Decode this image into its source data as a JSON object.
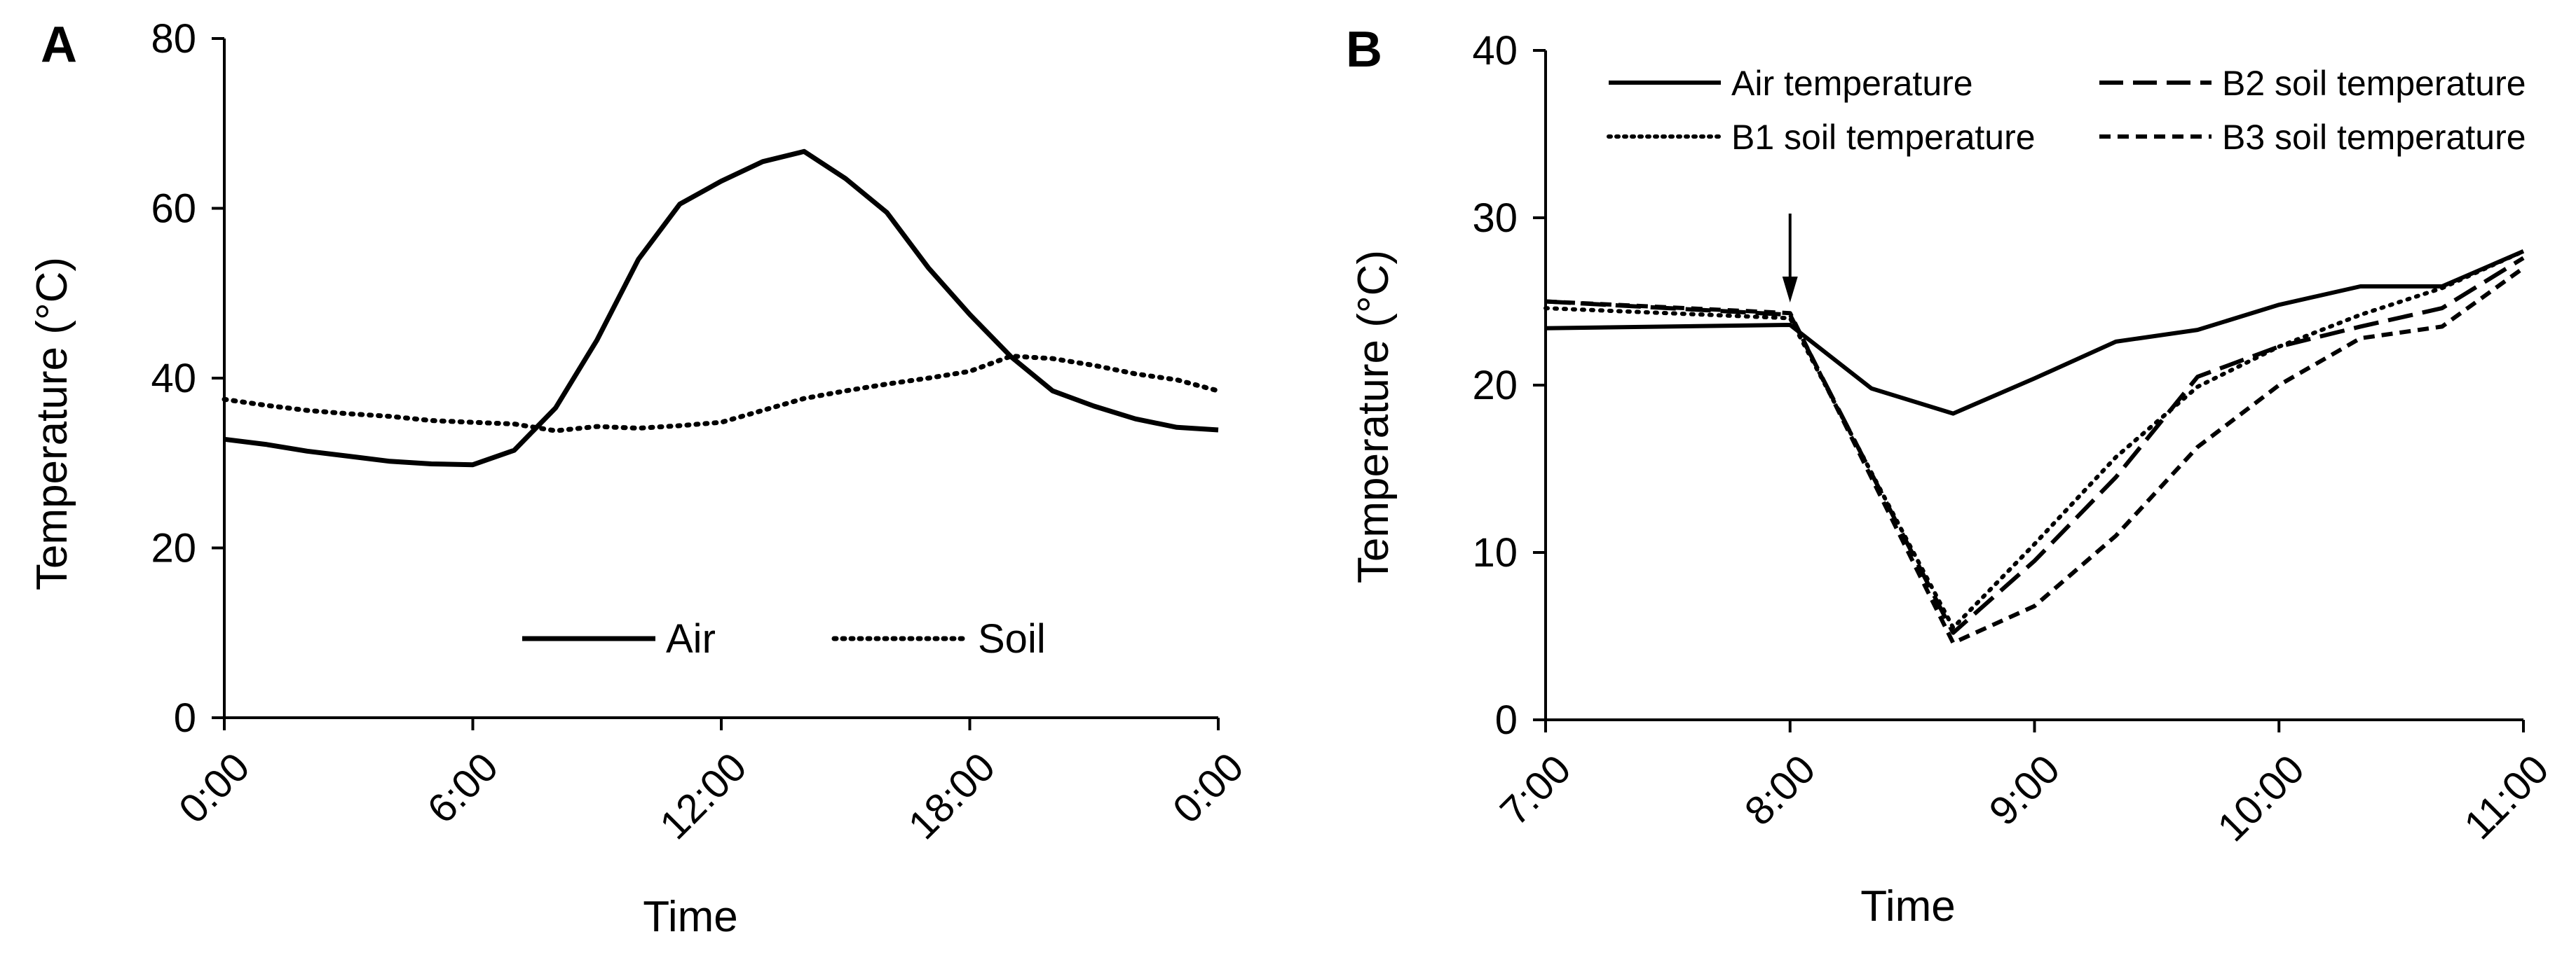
{
  "chart_data": [
    {
      "panel_letter": "A",
      "type": "line",
      "xlabel": "Time",
      "ylabel": "Temperature (°C)",
      "xlim": [
        0,
        24
      ],
      "ylim": [
        0,
        80
      ],
      "x_ticks": [
        0,
        6,
        12,
        18,
        24
      ],
      "x_tick_labels": [
        "0:00",
        "6:00",
        "12:00",
        "18:00",
        "0:00"
      ],
      "y_ticks": [
        0,
        20,
        40,
        60,
        80
      ],
      "y_tick_labels": [
        "0",
        "20",
        "40",
        "60",
        "80"
      ],
      "legend_position": "bottom-center",
      "series": [
        {
          "name": "Air",
          "style": "solid",
          "points": [
            [
              0,
              32.8
            ],
            [
              1,
              32.2
            ],
            [
              2,
              31.4
            ],
            [
              3,
              30.8
            ],
            [
              4,
              30.2
            ],
            [
              5,
              29.9
            ],
            [
              6,
              29.8
            ],
            [
              7,
              31.5
            ],
            [
              8,
              36.5
            ],
            [
              9,
              44.5
            ],
            [
              10,
              54
            ],
            [
              11,
              60.5
            ],
            [
              12,
              63.2
            ],
            [
              13,
              65.5
            ],
            [
              14,
              66.7
            ],
            [
              15,
              63.5
            ],
            [
              16,
              59.5
            ],
            [
              17,
              53
            ],
            [
              18,
              47.5
            ],
            [
              19,
              42.5
            ],
            [
              20,
              38.5
            ],
            [
              21,
              36.7
            ],
            [
              22,
              35.2
            ],
            [
              23,
              34.2
            ],
            [
              24,
              33.9
            ]
          ]
        },
        {
          "name": "Soil",
          "style": "dotted",
          "points": [
            [
              0,
              37.5
            ],
            [
              1,
              36.8
            ],
            [
              2,
              36.2
            ],
            [
              3,
              35.8
            ],
            [
              4,
              35.5
            ],
            [
              5,
              35
            ],
            [
              6,
              34.8
            ],
            [
              7,
              34.6
            ],
            [
              8,
              33.8
            ],
            [
              9,
              34.3
            ],
            [
              10,
              34.1
            ],
            [
              11,
              34.4
            ],
            [
              12,
              34.8
            ],
            [
              13,
              36.2
            ],
            [
              14,
              37.6
            ],
            [
              15,
              38.5
            ],
            [
              16,
              39.3
            ],
            [
              17,
              40
            ],
            [
              18,
              40.8
            ],
            [
              19,
              42.6
            ],
            [
              20,
              42.3
            ],
            [
              21,
              41.5
            ],
            [
              22,
              40.5
            ],
            [
              23,
              39.8
            ],
            [
              24,
              38.5
            ]
          ]
        }
      ]
    },
    {
      "panel_letter": "B",
      "type": "line",
      "xlabel": "Time",
      "ylabel": "Temperature (°C)",
      "xlim": [
        7,
        11
      ],
      "ylim": [
        0,
        40
      ],
      "x_ticks": [
        7,
        8,
        9,
        10,
        11
      ],
      "x_tick_labels": [
        "7:00",
        "8:00",
        "9:00",
        "10:00",
        "11:00"
      ],
      "y_ticks": [
        0,
        10,
        20,
        30,
        40
      ],
      "y_tick_labels": [
        "0",
        "10",
        "20",
        "30",
        "40"
      ],
      "legend_position": "top",
      "annotation": {
        "type": "arrow",
        "x": 8.0,
        "label": ""
      },
      "series": [
        {
          "name": "Air temperature",
          "style": "solid",
          "points": [
            [
              7,
              23.4
            ],
            [
              8,
              23.6
            ],
            [
              8.333,
              19.8
            ],
            [
              8.667,
              18.3
            ],
            [
              9,
              20.4
            ],
            [
              9.333,
              22.6
            ],
            [
              9.667,
              23.3
            ],
            [
              10,
              24.8
            ],
            [
              10.333,
              25.9
            ],
            [
              10.667,
              25.9
            ],
            [
              11,
              28
            ]
          ]
        },
        {
          "name": "B1 soil temperature",
          "style": "dotted",
          "points": [
            [
              7,
              24.6
            ],
            [
              8,
              24
            ],
            [
              8.667,
              5.5
            ],
            [
              9,
              10.5
            ],
            [
              9.333,
              15.7
            ],
            [
              9.667,
              19.9
            ],
            [
              10,
              22.3
            ],
            [
              10.333,
              24.2
            ],
            [
              10.667,
              25.8
            ],
            [
              11,
              28
            ]
          ]
        },
        {
          "name": "B2 soil temperature",
          "style": "long-dash",
          "points": [
            [
              7,
              25
            ],
            [
              8,
              24.2
            ],
            [
              8.667,
              5.2
            ],
            [
              9,
              9.5
            ],
            [
              9.333,
              14.5
            ],
            [
              9.667,
              20.5
            ],
            [
              10,
              22.3
            ],
            [
              10.333,
              23.5
            ],
            [
              10.667,
              24.6
            ],
            [
              11,
              27.6
            ]
          ]
        },
        {
          "name": "B3 soil temperature",
          "style": "short-dash",
          "points": [
            [
              7,
              25
            ],
            [
              8,
              24.3
            ],
            [
              8.667,
              4.6
            ],
            [
              9,
              6.8
            ],
            [
              9.333,
              11
            ],
            [
              9.667,
              16.3
            ],
            [
              10,
              20
            ],
            [
              10.333,
              22.8
            ],
            [
              10.667,
              23.5
            ],
            [
              11,
              27
            ]
          ]
        }
      ]
    }
  ]
}
